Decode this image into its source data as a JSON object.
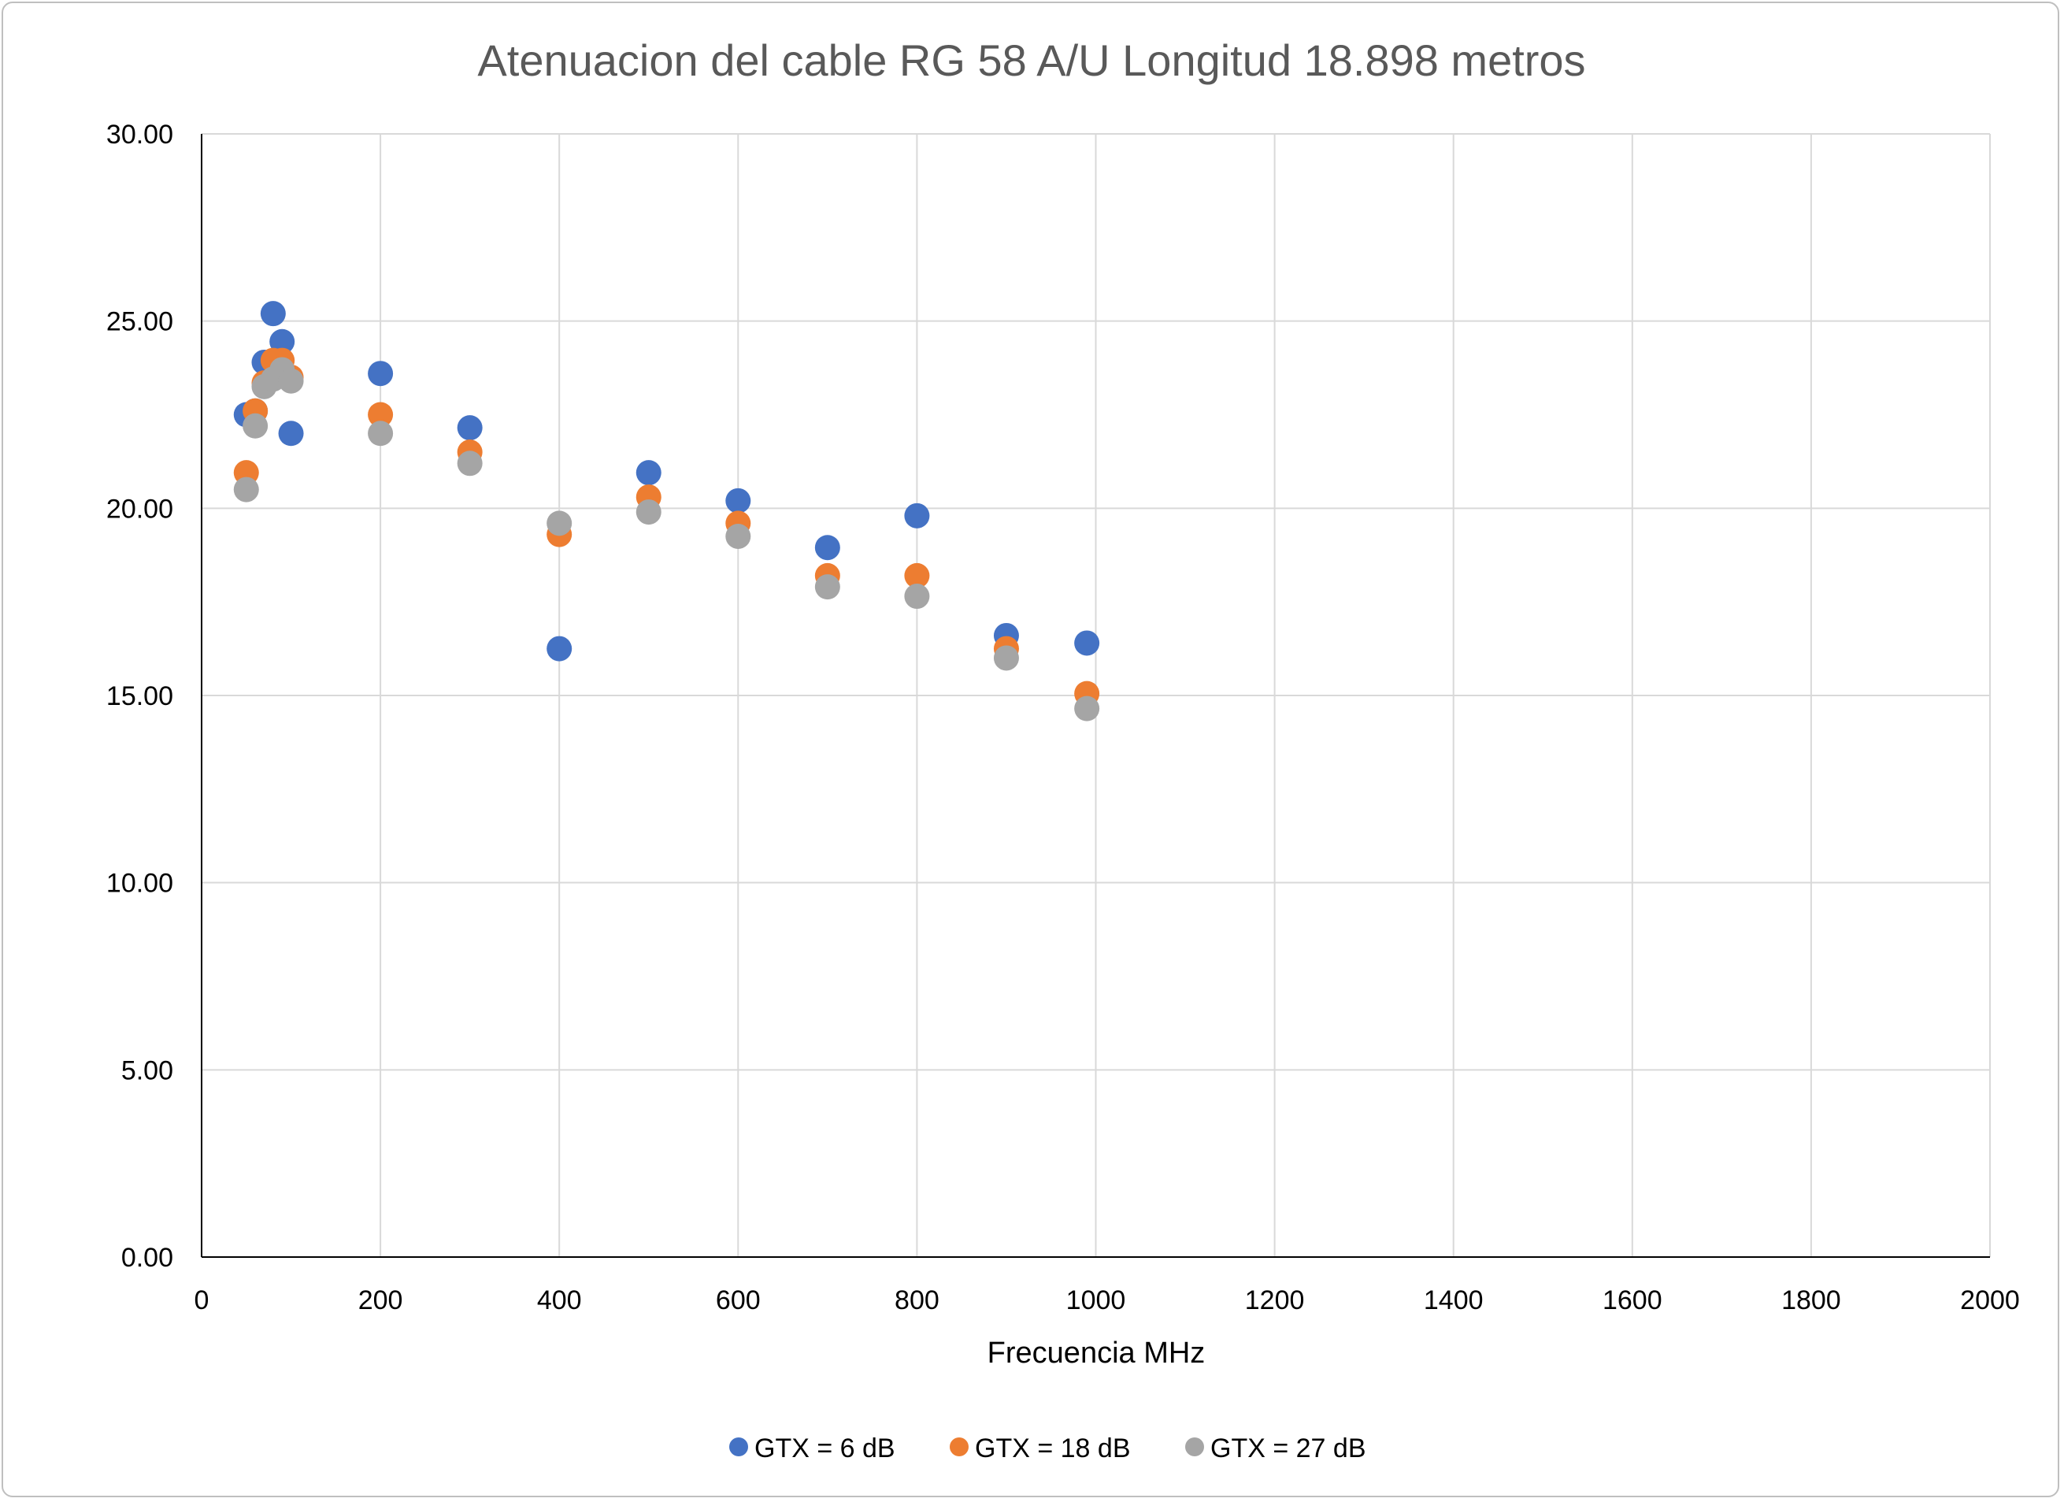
{
  "chart_data": {
    "type": "scatter",
    "title": "Atenuacion del cable RG 58 A/U Longitud 18.898 metros",
    "xlabel": "Frecuencia MHz",
    "ylabel": "",
    "xlim": [
      0,
      2000
    ],
    "ylim": [
      0,
      30
    ],
    "x_ticks": [
      0,
      200,
      400,
      600,
      800,
      1000,
      1200,
      1400,
      1600,
      1800,
      2000
    ],
    "x_tick_labels": [
      "0",
      "200",
      "400",
      "600",
      "800",
      "1000",
      "1200",
      "1400",
      "1600",
      "1800",
      "2000"
    ],
    "y_ticks": [
      0,
      5,
      10,
      15,
      20,
      25,
      30
    ],
    "y_tick_labels": [
      "0.00",
      "5.00",
      "10.00",
      "15.00",
      "20.00",
      "25.00",
      "30.00"
    ],
    "grid": true,
    "legend_position": "bottom",
    "series": [
      {
        "name": "GTX = 6 dB",
        "color": "#4472c4",
        "points": [
          [
            50,
            22.5
          ],
          [
            60,
            22.6
          ],
          [
            70,
            23.9
          ],
          [
            80,
            25.2
          ],
          [
            90,
            24.45
          ],
          [
            100,
            22.0
          ],
          [
            200,
            23.6
          ],
          [
            300,
            22.15
          ],
          [
            400,
            16.25
          ],
          [
            500,
            20.95
          ],
          [
            600,
            20.2
          ],
          [
            700,
            18.95
          ],
          [
            800,
            19.8
          ],
          [
            900,
            16.6
          ],
          [
            990,
            16.4
          ]
        ]
      },
      {
        "name": "GTX = 18 dB",
        "color": "#ed7d31",
        "points": [
          [
            50,
            20.95
          ],
          [
            60,
            22.6
          ],
          [
            70,
            23.35
          ],
          [
            80,
            23.95
          ],
          [
            90,
            23.95
          ],
          [
            100,
            23.5
          ],
          [
            200,
            22.5
          ],
          [
            300,
            21.5
          ],
          [
            400,
            19.3
          ],
          [
            500,
            20.3
          ],
          [
            600,
            19.6
          ],
          [
            700,
            18.2
          ],
          [
            800,
            18.2
          ],
          [
            900,
            16.25
          ],
          [
            990,
            15.05
          ]
        ]
      },
      {
        "name": "GTX = 27 dB",
        "color": "#a5a5a5",
        "points": [
          [
            50,
            20.5
          ],
          [
            60,
            22.2
          ],
          [
            70,
            23.25
          ],
          [
            80,
            23.45
          ],
          [
            90,
            23.7
          ],
          [
            100,
            23.4
          ],
          [
            200,
            22.0
          ],
          [
            300,
            21.2
          ],
          [
            400,
            19.6
          ],
          [
            500,
            19.9
          ],
          [
            600,
            19.25
          ],
          [
            700,
            17.9
          ],
          [
            800,
            17.65
          ],
          [
            900,
            16.0
          ],
          [
            990,
            14.65
          ]
        ]
      }
    ]
  }
}
